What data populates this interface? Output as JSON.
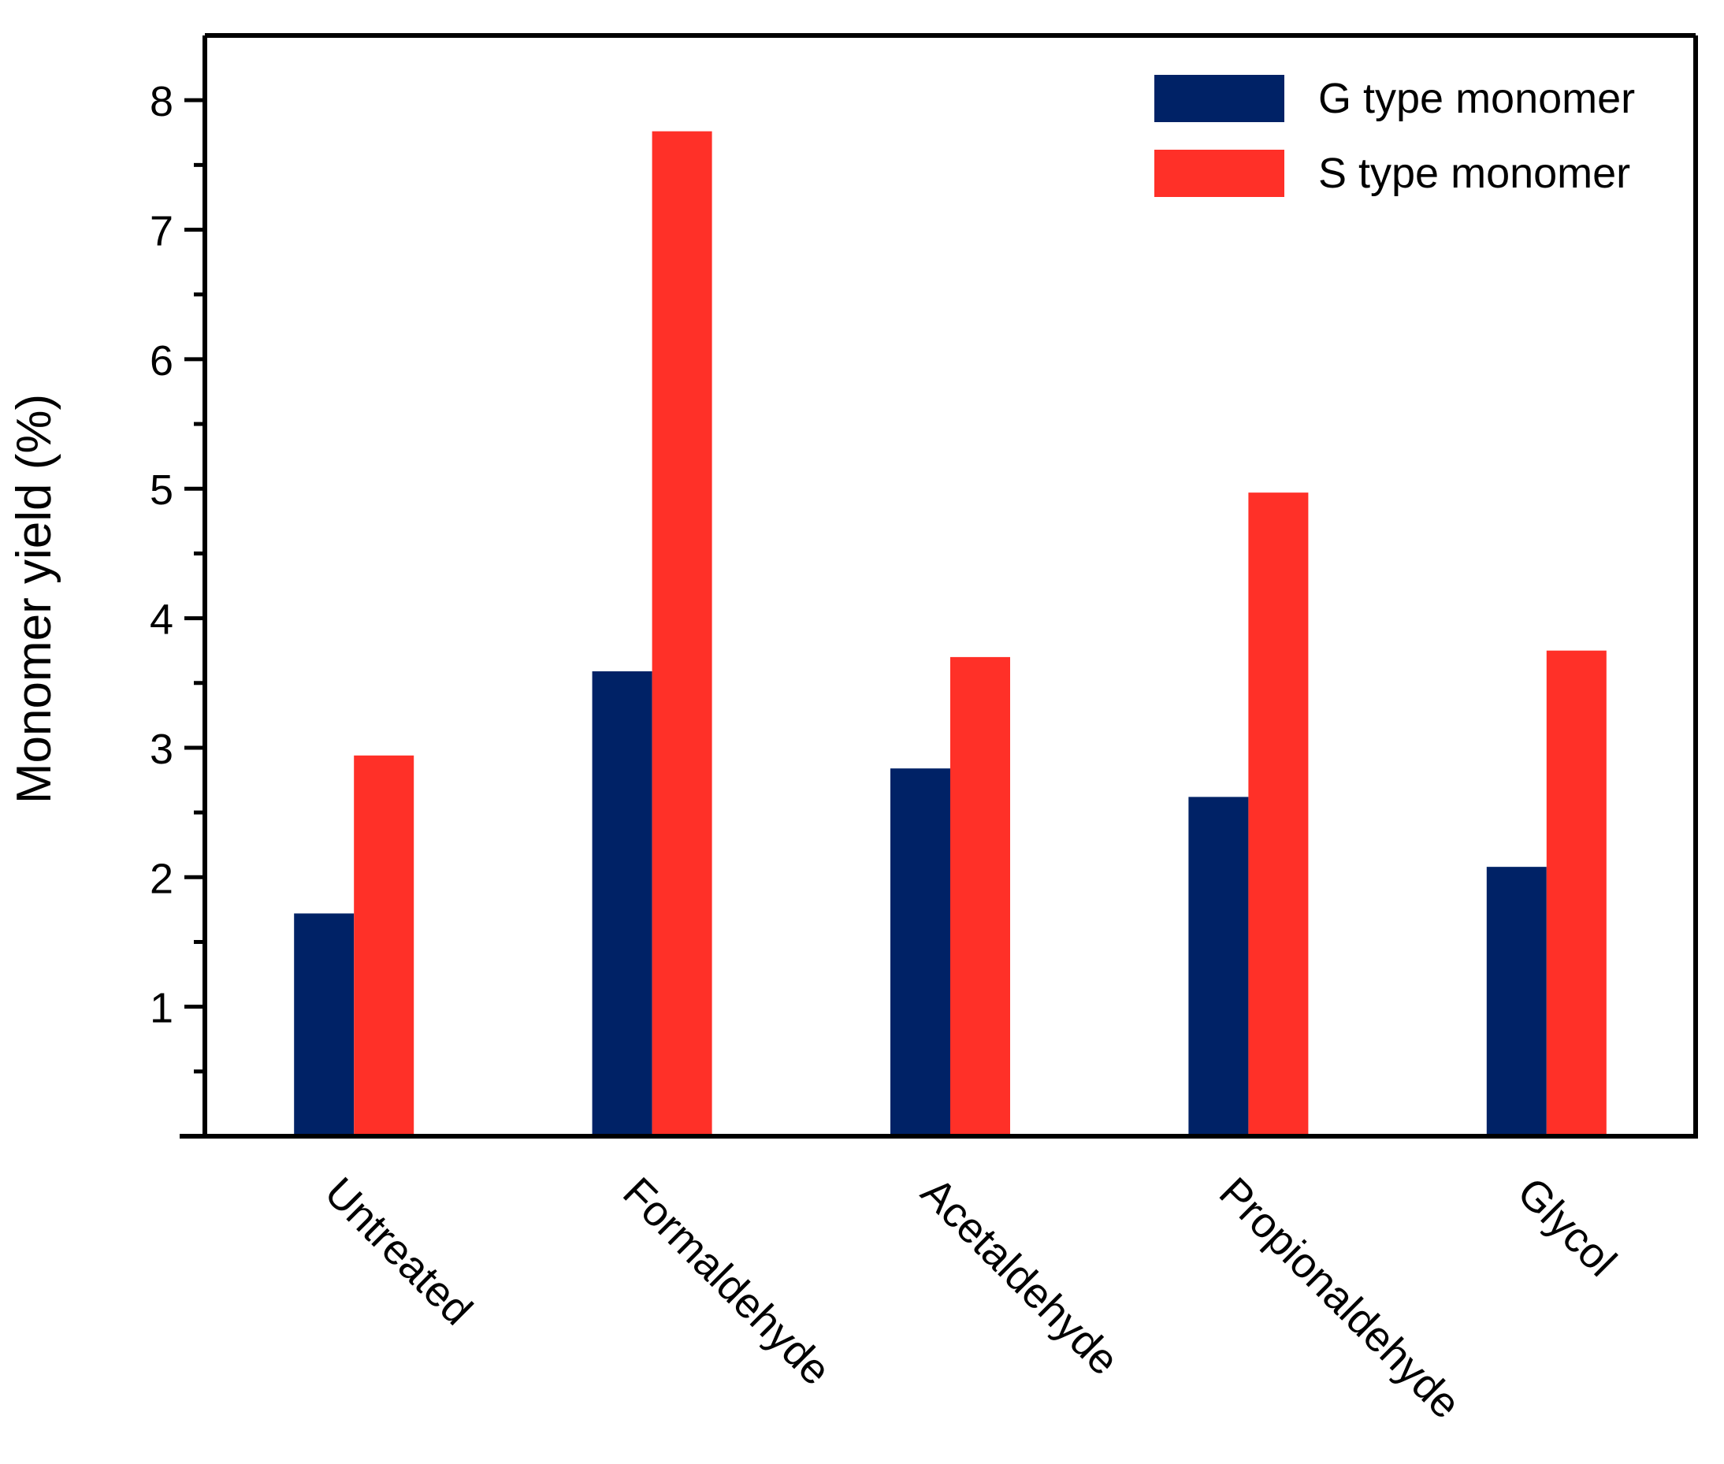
{
  "chart_data": {
    "type": "bar",
    "title": "",
    "xlabel": "",
    "ylabel": "Monomer yield (%)",
    "ylim": [
      0,
      8.5
    ],
    "yticks": [
      1,
      2,
      3,
      4,
      5,
      6,
      7,
      8
    ],
    "yticks_minor": [
      0.5,
      1.5,
      2.5,
      3.5,
      4.5,
      5.5,
      6.5,
      7.5
    ],
    "grid": false,
    "legend_position": "top-right",
    "categories": [
      "Untreated",
      "Formaldehyde",
      "Acetaldehyde",
      "Propionaldehyde",
      "Glycol"
    ],
    "series": [
      {
        "name": "G type monomer",
        "color": "#002266",
        "values": [
          1.72,
          3.59,
          2.84,
          2.62,
          2.08
        ]
      },
      {
        "name": "S type monomer",
        "color": "#ff3028",
        "values": [
          2.94,
          7.76,
          3.7,
          4.97,
          3.75
        ]
      }
    ]
  }
}
